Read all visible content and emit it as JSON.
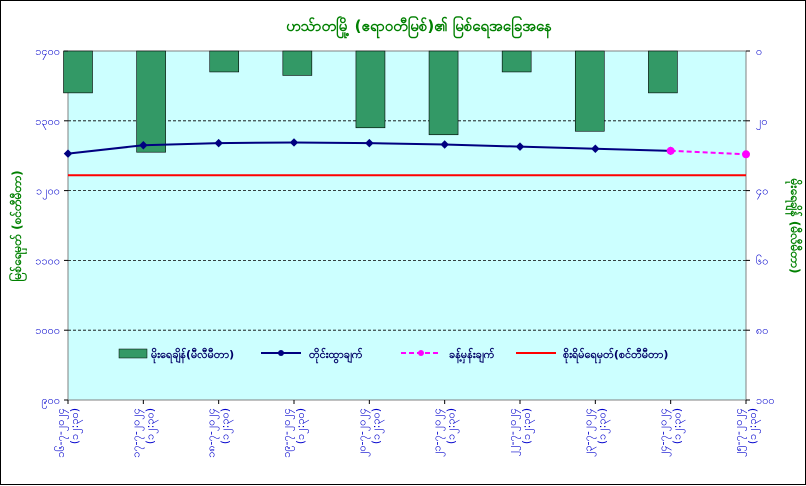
{
  "chart_data": {
    "type": "bar+line",
    "title": "ဟသ်ာတမြို့ (ဧရာဝတီမြစ်)၏ မြစ်ရေအခြေအနေ",
    "ylabel_left": "မြစ်ရေမှတ် (စင်တီမီတာ)",
    "ylabel_right": "မိုးရေချိန် (မီလီမီတာ)",
    "ylim_left": [
      900,
      1400
    ],
    "ylim_right": [
      100,
      0
    ],
    "yticks_left": [
      "၉၀၀",
      "၁၀၀၀",
      "၁၁၀၀",
      "၁၂၀၀",
      "၁၃၀၀",
      "၁၄၀၀"
    ],
    "yticks_right": [
      "၀",
      "၂၀",
      "၄၀",
      "၆၀",
      "၈၀",
      "၁၀၀"
    ],
    "categories": [
      "၁၆-၇-၂၀၂၄ (၁၂:၃၀)",
      "၁၇-၇-၂၀၂၄ (၁၂:၃၀)",
      "၁၈-၇-၂၀၂၄ (၁၂:၃၀)",
      "၁၉-၇-၂၀၂၄ (၁၂:၃၀)",
      "၂၀-၇-၂၀၂၄ (၁၂:၃၀)",
      "၂၁-၇-၂၀၂၄ (၁၂:၃၀)",
      "၂၂-၇-၂၀၂၄ (၁၂:၃၀)",
      "၂၃-၇-၂၀၂၄ (၁၂:၃၀)",
      "၂၄-၇-၂၀၂၄ (၁၂:၃၀)",
      "၂၅-၇-၂၀၂၄ (၁၂:၃၀)"
    ],
    "series": [
      {
        "name": "မိုးရေချိန်(မီလီမီတာ)",
        "kind": "bar",
        "axis": "right",
        "color": "#339966",
        "values": [
          12,
          29,
          6,
          7,
          22,
          24,
          6,
          23,
          12,
          null
        ]
      },
      {
        "name": "တိုင်းထွာချက်",
        "kind": "line",
        "axis": "left",
        "color": "#000080",
        "values": [
          1253,
          1265,
          1268,
          1269,
          1268,
          1266,
          1263,
          1260,
          1257,
          null
        ]
      },
      {
        "name": "ခန့်မှန်းချက်",
        "kind": "line-dashed",
        "axis": "left",
        "color": "#ff00ff",
        "values": [
          null,
          null,
          null,
          null,
          null,
          null,
          null,
          null,
          1257,
          1252
        ]
      },
      {
        "name": "စိုးရိမ်ရေမှတ်(စင်တီမီတာ)",
        "kind": "hline",
        "axis": "left",
        "color": "#ff0000",
        "value": 1222
      }
    ],
    "grid": true,
    "legend": "bottom-inside"
  }
}
